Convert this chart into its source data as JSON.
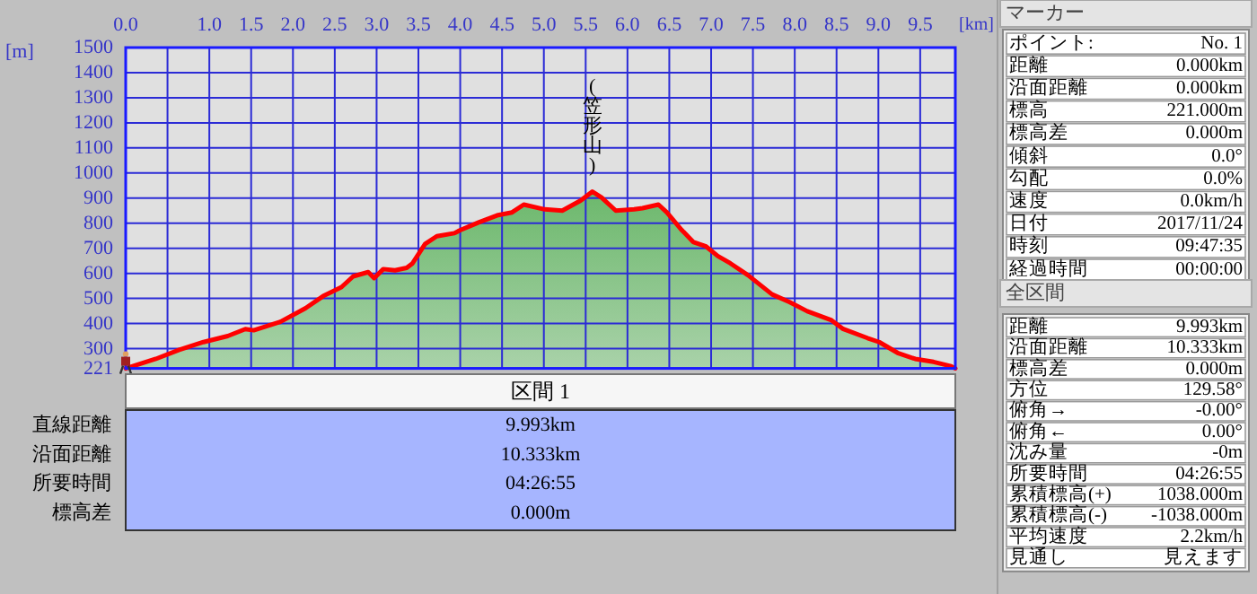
{
  "chart_data": [
    {
      "type": "area",
      "xlabel": "[km]",
      "ylabel": "[m]",
      "x": [
        0,
        0.36,
        0.64,
        0.93,
        1.22,
        1.43,
        1.53,
        1.85,
        2.15,
        2.36,
        2.58,
        2.72,
        2.9,
        2.97,
        3.08,
        3.22,
        3.36,
        3.43,
        3.58,
        3.72,
        3.93,
        4.0,
        4.22,
        4.44,
        4.62,
        4.76,
        5.01,
        5.22,
        5.44,
        5.58,
        5.69,
        5.86,
        6.08,
        6.18,
        6.37,
        6.47,
        6.65,
        6.79,
        6.94,
        7.08,
        7.23,
        7.44,
        7.73,
        7.94,
        8.15,
        8.44,
        8.58,
        8.87,
        9.01,
        9.23,
        9.44,
        9.66,
        9.87,
        9.92
      ],
      "series": [
        {
          "color": "#ff0000",
          "values": [
            221,
            259,
            295,
            326,
            350,
            378,
            373,
            407,
            461,
            509,
            545,
            588,
            605,
            581,
            617,
            612,
            622,
            640,
            717,
            748,
            760,
            772,
            803,
            831,
            843,
            874,
            855,
            850,
            890,
            926,
            902,
            850,
            855,
            860,
            874,
            843,
            772,
            724,
            707,
            669,
            640,
            593,
            516,
            485,
            449,
            413,
            378,
            342,
            326,
            283,
            259,
            247,
            230,
            221
          ]
        }
      ],
      "xlim": [
        0,
        9.92
      ],
      "xticks": [
        {
          "value": 0,
          "label": "0.0"
        },
        {
          "value": 0.5,
          "label": null
        },
        {
          "value": 1,
          "label": "1.0"
        },
        1.5,
        {
          "value": 2,
          "label": "2.0"
        },
        2.5,
        {
          "value": 3,
          "label": "3.0"
        },
        3.5,
        {
          "value": 4,
          "label": "4.0"
        },
        4.5,
        {
          "value": 5,
          "label": "5.0"
        },
        5.5,
        {
          "value": 6,
          "label": "6.0"
        },
        6.5,
        {
          "value": 7,
          "label": "7.0"
        },
        7.5,
        {
          "value": 8,
          "label": "8.0"
        },
        8.5,
        {
          "value": 9,
          "label": "9.0"
        },
        9.5
      ],
      "ylim": [
        221,
        1500
      ],
      "yticks": [
        221,
        300,
        400,
        500,
        600,
        700,
        800,
        900,
        1000,
        1100,
        1200,
        1300,
        1400,
        1500
      ],
      "grid": true,
      "marker": "none",
      "line_style": "solid",
      "annotations": [
        {
          "text": "(笠形山)",
          "x": 5.58,
          "y": 926
        }
      ]
    },
    {
      "type": "other",
      "title": "区間 1",
      "annotations": [
        "直線距離",
        "9.993km",
        "沿面距離",
        "10.333km",
        "所要時間",
        "04:26:55",
        "標高差",
        "0.000m"
      ]
    },
    {
      "type": "other",
      "title": "マーカー",
      "annotations": [
        "ポイント:",
        "No. 1",
        "距離",
        "0.000km",
        "沿面距離",
        "0.000km",
        "標高",
        "221.000m",
        "標高差",
        "0.000m",
        "傾斜",
        "0.0°",
        "勾配",
        "0.0%",
        "速度",
        "0.0km/h",
        "日付",
        "2017/11/24",
        "時刻",
        "09:47:35",
        "経過時間",
        "00:00:00"
      ]
    },
    {
      "type": "other",
      "title": "全区間",
      "annotations": [
        "距離",
        "9.993km",
        "沿面距離",
        "10.333km",
        "標高差",
        "0.000m",
        "方位",
        "129.58°",
        "俯角→",
        "-0.00°",
        "俯角←",
        "0.00°",
        "沈み量",
        "-0m",
        "所要時間",
        "04:26:55",
        "累積標高(+)",
        "1038.000m",
        "累積標高(-)",
        "-1038.000m",
        "平均速度",
        "2.2km/h",
        "見通し",
        "見えます"
      ]
    }
  ]
}
